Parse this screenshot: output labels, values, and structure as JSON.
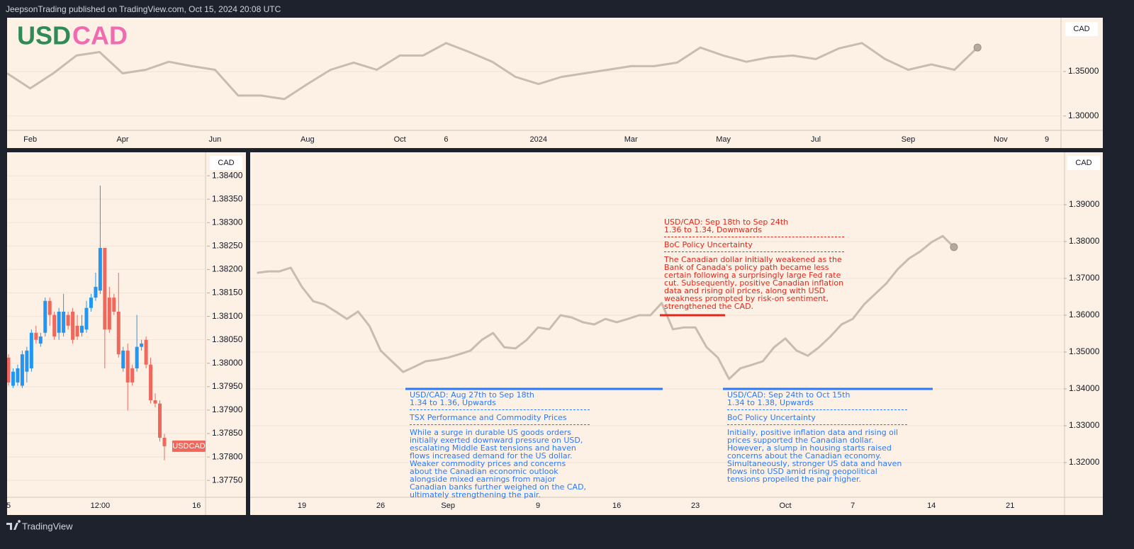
{
  "header": {
    "text": "JeepsonTrading published on TradingView.com, Oct 15, 2024 20:08 UTC"
  },
  "footer": {
    "brand": "TradingView"
  },
  "chart_data": [
    {
      "type": "line",
      "symbol_base": "USD",
      "symbol_quote": "CAD",
      "symbol_base_color": "#2e8b57",
      "symbol_quote_color": "#f06bb0",
      "axis_unit": "CAD",
      "color": "#c8bbb1",
      "grid": true,
      "categories": [
        null,
        "Feb",
        null,
        null,
        null,
        "Apr",
        null,
        null,
        null,
        "Jun",
        null,
        null,
        null,
        "Aug",
        null,
        null,
        null,
        "Oct",
        null,
        "6",
        null,
        null,
        null,
        "2024",
        null,
        null,
        null,
        "Mar",
        null,
        null,
        null,
        "May",
        null,
        null,
        null,
        "Jul",
        null,
        null,
        null,
        "Sep",
        null,
        null,
        null,
        "Nov",
        null,
        "9"
      ],
      "values": [
        1.348,
        1.331,
        1.348,
        1.368,
        1.372,
        1.348,
        1.352,
        1.361,
        1.356,
        1.352,
        1.323,
        1.323,
        1.319,
        1.336,
        1.352,
        1.36,
        1.352,
        1.368,
        1.368,
        1.382,
        1.372,
        1.361,
        1.344,
        1.336,
        1.344,
        1.348,
        1.352,
        1.356,
        1.356,
        1.36,
        1.377,
        1.368,
        1.361,
        1.366,
        1.368,
        1.364,
        1.376,
        1.382,
        1.364,
        1.352,
        1.358,
        1.352,
        1.377,
        null,
        null,
        null
      ],
      "ylim": [
        1.2839,
        1.4105
      ],
      "yticks": [
        {
          "value": 1.35,
          "label": "1.35000"
        },
        {
          "value": 1.3,
          "label": "1.30000"
        }
      ]
    },
    {
      "type": "candlestick",
      "axis_unit": "CAD",
      "symbol_label": "USDCAD",
      "up_color": "#2196f3",
      "down_color": "#f0675c",
      "grid": true,
      "categories": [
        "5",
        null,
        null,
        null,
        null,
        null,
        null,
        null,
        null,
        null,
        null,
        null,
        null,
        null,
        null,
        null,
        null,
        null,
        null,
        null,
        "12:00",
        null,
        null,
        null,
        null,
        null,
        null,
        null,
        null,
        null,
        null,
        null,
        null,
        null,
        null,
        null,
        null,
        null,
        null,
        null,
        null,
        "16"
      ],
      "open": [
        1.38012,
        1.37952,
        1.37959,
        1.37952,
        1.37982,
        1.37989,
        1.38065,
        1.38042,
        1.38065,
        1.38133,
        1.38103,
        1.38065,
        1.38065,
        1.38103,
        1.3811,
        1.3808,
        1.38065,
        1.38072,
        1.38118,
        1.3814,
        1.38155,
        1.38246,
        1.3814,
        1.3814,
        1.3811,
        1.37989,
        1.38027,
        1.37989,
        1.37989,
        1.38035,
        1.3805,
        1.37997,
        1.37921,
        1.37914,
        1.37841,
        null,
        null,
        null,
        null,
        null,
        null,
        null
      ],
      "high": [
        1.38019,
        1.37989,
        1.37997,
        1.38027,
        1.38035,
        1.38072,
        1.3808,
        1.38065,
        1.3814,
        1.3814,
        1.3811,
        1.38118,
        1.38148,
        1.3811,
        1.38118,
        1.38103,
        1.38103,
        1.38133,
        1.38148,
        1.38193,
        1.38379,
        1.38246,
        1.38163,
        1.38148,
        1.38193,
        1.38035,
        1.38042,
        1.37997,
        1.38103,
        1.3805,
        1.38057,
        1.38012,
        1.37936,
        1.37921,
        1.37849,
        null,
        null,
        null,
        null,
        null,
        null,
        null
      ],
      "low": [
        1.37952,
        1.37947,
        1.37952,
        1.37947,
        1.37959,
        1.37982,
        1.38042,
        1.38035,
        1.38057,
        1.3808,
        1.3805,
        1.3805,
        1.38057,
        1.38072,
        1.38042,
        1.3805,
        1.38057,
        1.38065,
        1.3811,
        1.38133,
        1.38148,
        1.37989,
        1.38065,
        1.38103,
        1.38012,
        1.37982,
        1.37899,
        1.37952,
        1.37982,
        1.38027,
        1.37989,
        1.37914,
        1.37906,
        1.37833,
        1.37793,
        null,
        null,
        null,
        null,
        null,
        null,
        null
      ],
      "close": [
        1.37959,
        1.37982,
        1.37989,
        1.38019,
        1.38027,
        1.38065,
        1.3805,
        1.38057,
        1.38133,
        1.38103,
        1.38057,
        1.3811,
        1.3811,
        1.3808,
        1.3805,
        1.38057,
        1.3808,
        1.38118,
        1.3814,
        1.38163,
        1.38246,
        1.38072,
        1.38072,
        1.3811,
        1.38019,
        1.38027,
        1.37959,
        1.37959,
        1.38035,
        1.38042,
        1.37997,
        1.37921,
        1.37914,
        1.37841,
        1.37823,
        null,
        null,
        null,
        null,
        null,
        null,
        null
      ],
      "ylim": [
        1.37714,
        1.3845
      ],
      "yticks": [
        {
          "value": 1.384,
          "label": "1.38400"
        },
        {
          "value": 1.3835,
          "label": "1.38350"
        },
        {
          "value": 1.383,
          "label": "1.38300"
        },
        {
          "value": 1.3825,
          "label": "1.38250"
        },
        {
          "value": 1.382,
          "label": "1.38200"
        },
        {
          "value": 1.3815,
          "label": "1.38150"
        },
        {
          "value": 1.381,
          "label": "1.38100"
        },
        {
          "value": 1.3805,
          "label": "1.38050"
        },
        {
          "value": 1.38,
          "label": "1.38000"
        },
        {
          "value": 1.3795,
          "label": "1.37950"
        },
        {
          "value": 1.379,
          "label": "1.37900"
        },
        {
          "value": 1.3785,
          "label": "1.37850"
        },
        {
          "value": 1.378,
          "label": "1.37800"
        },
        {
          "value": 1.3775,
          "label": "1.37750"
        }
      ]
    },
    {
      "type": "line",
      "axis_unit": "CAD",
      "color": "#c8bbb1",
      "grid": true,
      "categories": [
        null,
        null,
        null,
        null,
        "19",
        null,
        null,
        null,
        null,
        null,
        null,
        "26",
        null,
        null,
        null,
        null,
        null,
        "Sep",
        null,
        null,
        null,
        null,
        null,
        null,
        null,
        "9",
        null,
        null,
        null,
        null,
        null,
        null,
        "16",
        null,
        null,
        null,
        null,
        null,
        null,
        "23",
        null,
        null,
        null,
        null,
        null,
        null,
        null,
        "Oct",
        null,
        null,
        null,
        null,
        null,
        "7",
        null,
        null,
        null,
        null,
        null,
        null,
        "14",
        null,
        null,
        null,
        null,
        null,
        null,
        "21"
      ],
      "values": [
        1.3715,
        1.3719,
        1.3719,
        1.3729,
        1.3677,
        1.3638,
        1.3629,
        1.361,
        1.359,
        1.361,
        1.3571,
        1.3504,
        1.3475,
        1.3446,
        1.346,
        1.3475,
        1.3479,
        1.3485,
        1.3494,
        1.3504,
        1.3533,
        1.3552,
        1.3513,
        1.351,
        1.3533,
        1.3567,
        1.3562,
        1.36,
        1.3594,
        1.3581,
        1.3575,
        1.359,
        1.3581,
        1.359,
        1.36,
        1.36,
        1.3633,
        1.3562,
        1.3567,
        1.3567,
        1.3513,
        1.3485,
        1.3427,
        1.3456,
        1.3465,
        1.3475,
        1.3513,
        1.3537,
        1.3504,
        1.349,
        1.3513,
        1.3542,
        1.3575,
        1.359,
        1.3629,
        1.3658,
        1.3687,
        1.3725,
        1.3754,
        1.3773,
        1.3798,
        1.3815,
        1.3785,
        null,
        null,
        null,
        null,
        null
      ],
      "ylim": [
        1.31058,
        1.40423
      ],
      "yticks": [
        {
          "value": 1.39,
          "label": "1.39000"
        },
        {
          "value": 1.38,
          "label": "1.38000"
        },
        {
          "value": 1.37,
          "label": "1.37000"
        },
        {
          "value": 1.36,
          "label": "1.36000"
        },
        {
          "value": 1.35,
          "label": "1.35000"
        },
        {
          "value": 1.34,
          "label": "1.34000"
        },
        {
          "value": 1.33,
          "label": "1.33000"
        },
        {
          "value": 1.32,
          "label": "1.32000"
        }
      ],
      "annotations": [
        {
          "title": "USD/CAD: Aug 27th to Sep 18th",
          "subtitle": "1.34 to 1.36, Upwards",
          "topic": "TSX Performance and Commodity Prices",
          "text": "While a surge in durable US goods orders initially exerted downward pressure on USD, escalating Middle East tensions and haven flows increased demand for the US dollar. Weaker commodity prices and concerns about the Canadian economic outlook alongside mixed earnings from major Canadian banks further weighed on the CAD, ultimately strengthening the pair.",
          "level": 1.34,
          "color": "#2979ff"
        },
        {
          "title": "USD/CAD: Sep 18th to Sep 24th",
          "subtitle": "1.36 to 1.34, Downwards",
          "topic": "BoC Policy Uncertainty",
          "text": "The Canadian dollar initially weakened as the Bank of Canada's policy path became less certain following a surprisingly large Fed rate cut. Subsequently, positive Canadian inflation data and rising oil prices, along with USD weakness prompted by risk-on sentiment, strengthened the CAD.",
          "level": 1.36,
          "color": "#e3261a"
        },
        {
          "title": "USD/CAD: Sep 24th to Oct 15th",
          "subtitle": "1.34 to 1.38, Upwards",
          "topic": "BoC Policy Uncertainty",
          "text": "Initially, positive inflation data and rising oil prices supported the Canadian dollar. However, a slump in housing starts raised concerns about the Canadian economy. Simultaneously, stronger US data and haven flows into USD amid rising geopolitical tensions propelled the pair higher.",
          "level": 1.34,
          "color": "#2979ff"
        }
      ]
    }
  ]
}
